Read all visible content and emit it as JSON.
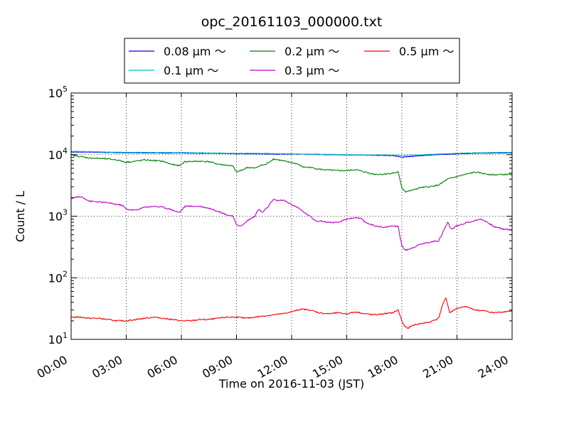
{
  "chart_data": {
    "type": "line",
    "title": "opc_20161103_000000.txt",
    "xlabel": "Time on 2016-11-03 (JST)",
    "ylabel": "Count / L",
    "x_unit": "hours",
    "xlim": [
      0,
      24
    ],
    "yscale": "log",
    "ylim": [
      10,
      100000
    ],
    "grid": true,
    "legend_position": "top-center",
    "x_ticks": [
      {
        "value": 0,
        "label": "00:00"
      },
      {
        "value": 3,
        "label": "03:00"
      },
      {
        "value": 6,
        "label": "06:00"
      },
      {
        "value": 9,
        "label": "09:00"
      },
      {
        "value": 12,
        "label": "12:00"
      },
      {
        "value": 15,
        "label": "15:00"
      },
      {
        "value": 18,
        "label": "18:00"
      },
      {
        "value": 21,
        "label": "21:00"
      },
      {
        "value": 24,
        "label": "24:00"
      }
    ],
    "y_ticks": [
      {
        "value": 10,
        "base": "10",
        "exp": "1"
      },
      {
        "value": 100,
        "base": "10",
        "exp": "2"
      },
      {
        "value": 1000,
        "base": "10",
        "exp": "3"
      },
      {
        "value": 10000,
        "base": "10",
        "exp": "4"
      },
      {
        "value": 100000,
        "base": "10",
        "exp": "5"
      }
    ],
    "series": [
      {
        "name": "0.08 μm ～",
        "color": "#0000ff",
        "points": [
          [
            0,
            11000
          ],
          [
            1,
            11000
          ],
          [
            2,
            10800
          ],
          [
            3,
            10700
          ],
          [
            4,
            10700
          ],
          [
            5,
            10600
          ],
          [
            6,
            10600
          ],
          [
            7,
            10500
          ],
          [
            8,
            10500
          ],
          [
            9,
            10300
          ],
          [
            10,
            10300
          ],
          [
            11,
            10200
          ],
          [
            12,
            10200
          ],
          [
            13,
            10100
          ],
          [
            14,
            10000
          ],
          [
            15,
            9900
          ],
          [
            16,
            9800
          ],
          [
            17,
            9700
          ],
          [
            17.5,
            9600
          ],
          [
            18,
            9100
          ],
          [
            18.5,
            9300
          ],
          [
            19,
            9600
          ],
          [
            20,
            10000
          ],
          [
            21,
            10300
          ],
          [
            22,
            10500
          ],
          [
            23,
            10600
          ],
          [
            24,
            10700
          ]
        ]
      },
      {
        "name": "0.1 μm ～",
        "color": "#00bfbf",
        "points": [
          [
            0,
            11300
          ],
          [
            1,
            11200
          ],
          [
            2,
            11000
          ],
          [
            3,
            10900
          ],
          [
            4,
            10900
          ],
          [
            5,
            10800
          ],
          [
            6,
            10800
          ],
          [
            7,
            10700
          ],
          [
            8,
            10600
          ],
          [
            9,
            10500
          ],
          [
            10,
            10500
          ],
          [
            11,
            10400
          ],
          [
            12,
            10300
          ],
          [
            13,
            10200
          ],
          [
            14,
            10100
          ],
          [
            15,
            10000
          ],
          [
            16,
            9900
          ],
          [
            17,
            9900
          ],
          [
            17.5,
            9800
          ],
          [
            18,
            9600
          ],
          [
            18.5,
            9700
          ],
          [
            19,
            9900
          ],
          [
            20,
            10200
          ],
          [
            21,
            10500
          ],
          [
            22,
            10700
          ],
          [
            23,
            10800
          ],
          [
            24,
            10900
          ]
        ]
      },
      {
        "name": "0.2 μm ～",
        "color": "#008000",
        "points": [
          [
            0,
            9800
          ],
          [
            0.5,
            9300
          ],
          [
            1,
            8800
          ],
          [
            1.5,
            8700
          ],
          [
            2,
            8500
          ],
          [
            2.5,
            8200
          ],
          [
            3,
            7500
          ],
          [
            3.5,
            7800
          ],
          [
            4,
            8200
          ],
          [
            4.5,
            8000
          ],
          [
            5,
            7800
          ],
          [
            5.3,
            7200
          ],
          [
            5.6,
            6800
          ],
          [
            5.9,
            6600
          ],
          [
            6.2,
            7700
          ],
          [
            7,
            7800
          ],
          [
            7.5,
            7700
          ],
          [
            8,
            7000
          ],
          [
            8.5,
            6700
          ],
          [
            8.8,
            6500
          ],
          [
            9,
            5200
          ],
          [
            9.3,
            5600
          ],
          [
            9.6,
            6200
          ],
          [
            10,
            6000
          ],
          [
            10.3,
            6700
          ],
          [
            10.6,
            6900
          ],
          [
            11,
            8500
          ],
          [
            11.3,
            8200
          ],
          [
            11.6,
            7800
          ],
          [
            12,
            7400
          ],
          [
            12.3,
            7100
          ],
          [
            12.6,
            6300
          ],
          [
            13,
            6200
          ],
          [
            13.5,
            5800
          ],
          [
            14,
            5600
          ],
          [
            14.5,
            5500
          ],
          [
            15,
            5500
          ],
          [
            15.5,
            5700
          ],
          [
            16,
            5200
          ],
          [
            16.5,
            4800
          ],
          [
            17,
            4800
          ],
          [
            17.5,
            5000
          ],
          [
            17.8,
            5200
          ],
          [
            18,
            2900
          ],
          [
            18.2,
            2500
          ],
          [
            18.5,
            2600
          ],
          [
            19,
            2900
          ],
          [
            19.5,
            3000
          ],
          [
            20,
            3200
          ],
          [
            20.5,
            4000
          ],
          [
            21,
            4400
          ],
          [
            21.5,
            4800
          ],
          [
            22,
            5200
          ],
          [
            22.5,
            4900
          ],
          [
            23,
            4700
          ],
          [
            24,
            4800
          ]
        ]
      },
      {
        "name": "0.3 μm ～",
        "color": "#bf00bf",
        "points": [
          [
            0,
            1950
          ],
          [
            0.3,
            2050
          ],
          [
            0.6,
            2050
          ],
          [
            0.8,
            1900
          ],
          [
            1,
            1750
          ],
          [
            1.5,
            1700
          ],
          [
            2,
            1650
          ],
          [
            2.5,
            1550
          ],
          [
            2.8,
            1500
          ],
          [
            3,
            1300
          ],
          [
            3.5,
            1250
          ],
          [
            4,
            1400
          ],
          [
            4.5,
            1450
          ],
          [
            5,
            1400
          ],
          [
            5.4,
            1300
          ],
          [
            5.7,
            1200
          ],
          [
            5.9,
            1150
          ],
          [
            6.2,
            1450
          ],
          [
            7,
            1450
          ],
          [
            7.5,
            1350
          ],
          [
            8,
            1200
          ],
          [
            8.5,
            1050
          ],
          [
            8.8,
            1000
          ],
          [
            9,
            720
          ],
          [
            9.3,
            700
          ],
          [
            9.6,
            850
          ],
          [
            10,
            1000
          ],
          [
            10.2,
            1300
          ],
          [
            10.4,
            1150
          ],
          [
            10.7,
            1400
          ],
          [
            11,
            1850
          ],
          [
            11.3,
            1800
          ],
          [
            11.6,
            1800
          ],
          [
            12,
            1550
          ],
          [
            12.3,
            1400
          ],
          [
            12.6,
            1200
          ],
          [
            13,
            1000
          ],
          [
            13.3,
            850
          ],
          [
            13.6,
            830
          ],
          [
            14,
            800
          ],
          [
            14.5,
            780
          ],
          [
            15,
            900
          ],
          [
            15.5,
            950
          ],
          [
            15.8,
            900
          ],
          [
            16,
            800
          ],
          [
            16.5,
            700
          ],
          [
            16.8,
            680
          ],
          [
            17,
            650
          ],
          [
            17.5,
            700
          ],
          [
            17.8,
            680
          ],
          [
            18,
            330
          ],
          [
            18.2,
            280
          ],
          [
            18.5,
            300
          ],
          [
            19,
            350
          ],
          [
            19.5,
            380
          ],
          [
            20,
            400
          ],
          [
            20.3,
            600
          ],
          [
            20.5,
            800
          ],
          [
            20.7,
            610
          ],
          [
            21,
            700
          ],
          [
            21.5,
            780
          ],
          [
            22,
            850
          ],
          [
            22.3,
            900
          ],
          [
            22.6,
            820
          ],
          [
            23,
            680
          ],
          [
            23.5,
            620
          ],
          [
            24,
            600
          ]
        ]
      },
      {
        "name": "0.5 μm ～",
        "color": "#ff0000",
        "points": [
          [
            0,
            23
          ],
          [
            0.5,
            23
          ],
          [
            1,
            22
          ],
          [
            1.5,
            22
          ],
          [
            2,
            21
          ],
          [
            2.5,
            20
          ],
          [
            3,
            20
          ],
          [
            3.5,
            21
          ],
          [
            4,
            22
          ],
          [
            4.5,
            23
          ],
          [
            5,
            22
          ],
          [
            5.5,
            21
          ],
          [
            6,
            20
          ],
          [
            6.5,
            20
          ],
          [
            7,
            21
          ],
          [
            7.5,
            21
          ],
          [
            8,
            22
          ],
          [
            8.5,
            23
          ],
          [
            9,
            23
          ],
          [
            9.5,
            22
          ],
          [
            10,
            23
          ],
          [
            10.5,
            24
          ],
          [
            11,
            25
          ],
          [
            11.5,
            26
          ],
          [
            12,
            28
          ],
          [
            12.5,
            31
          ],
          [
            13,
            30
          ],
          [
            13.5,
            27
          ],
          [
            14,
            26
          ],
          [
            14.5,
            27
          ],
          [
            15,
            26
          ],
          [
            15.5,
            28
          ],
          [
            16,
            26
          ],
          [
            16.5,
            25
          ],
          [
            17,
            26
          ],
          [
            17.5,
            27
          ],
          [
            17.8,
            30
          ],
          [
            18,
            20
          ],
          [
            18.1,
            17
          ],
          [
            18.3,
            15
          ],
          [
            18.6,
            17
          ],
          [
            19,
            18
          ],
          [
            19.5,
            19
          ],
          [
            20,
            22
          ],
          [
            20.2,
            35
          ],
          [
            20.4,
            48
          ],
          [
            20.6,
            27
          ],
          [
            21,
            32
          ],
          [
            21.5,
            34
          ],
          [
            22,
            30
          ],
          [
            22.5,
            29
          ],
          [
            23,
            27
          ],
          [
            23.5,
            28
          ],
          [
            24,
            29
          ]
        ]
      }
    ]
  }
}
